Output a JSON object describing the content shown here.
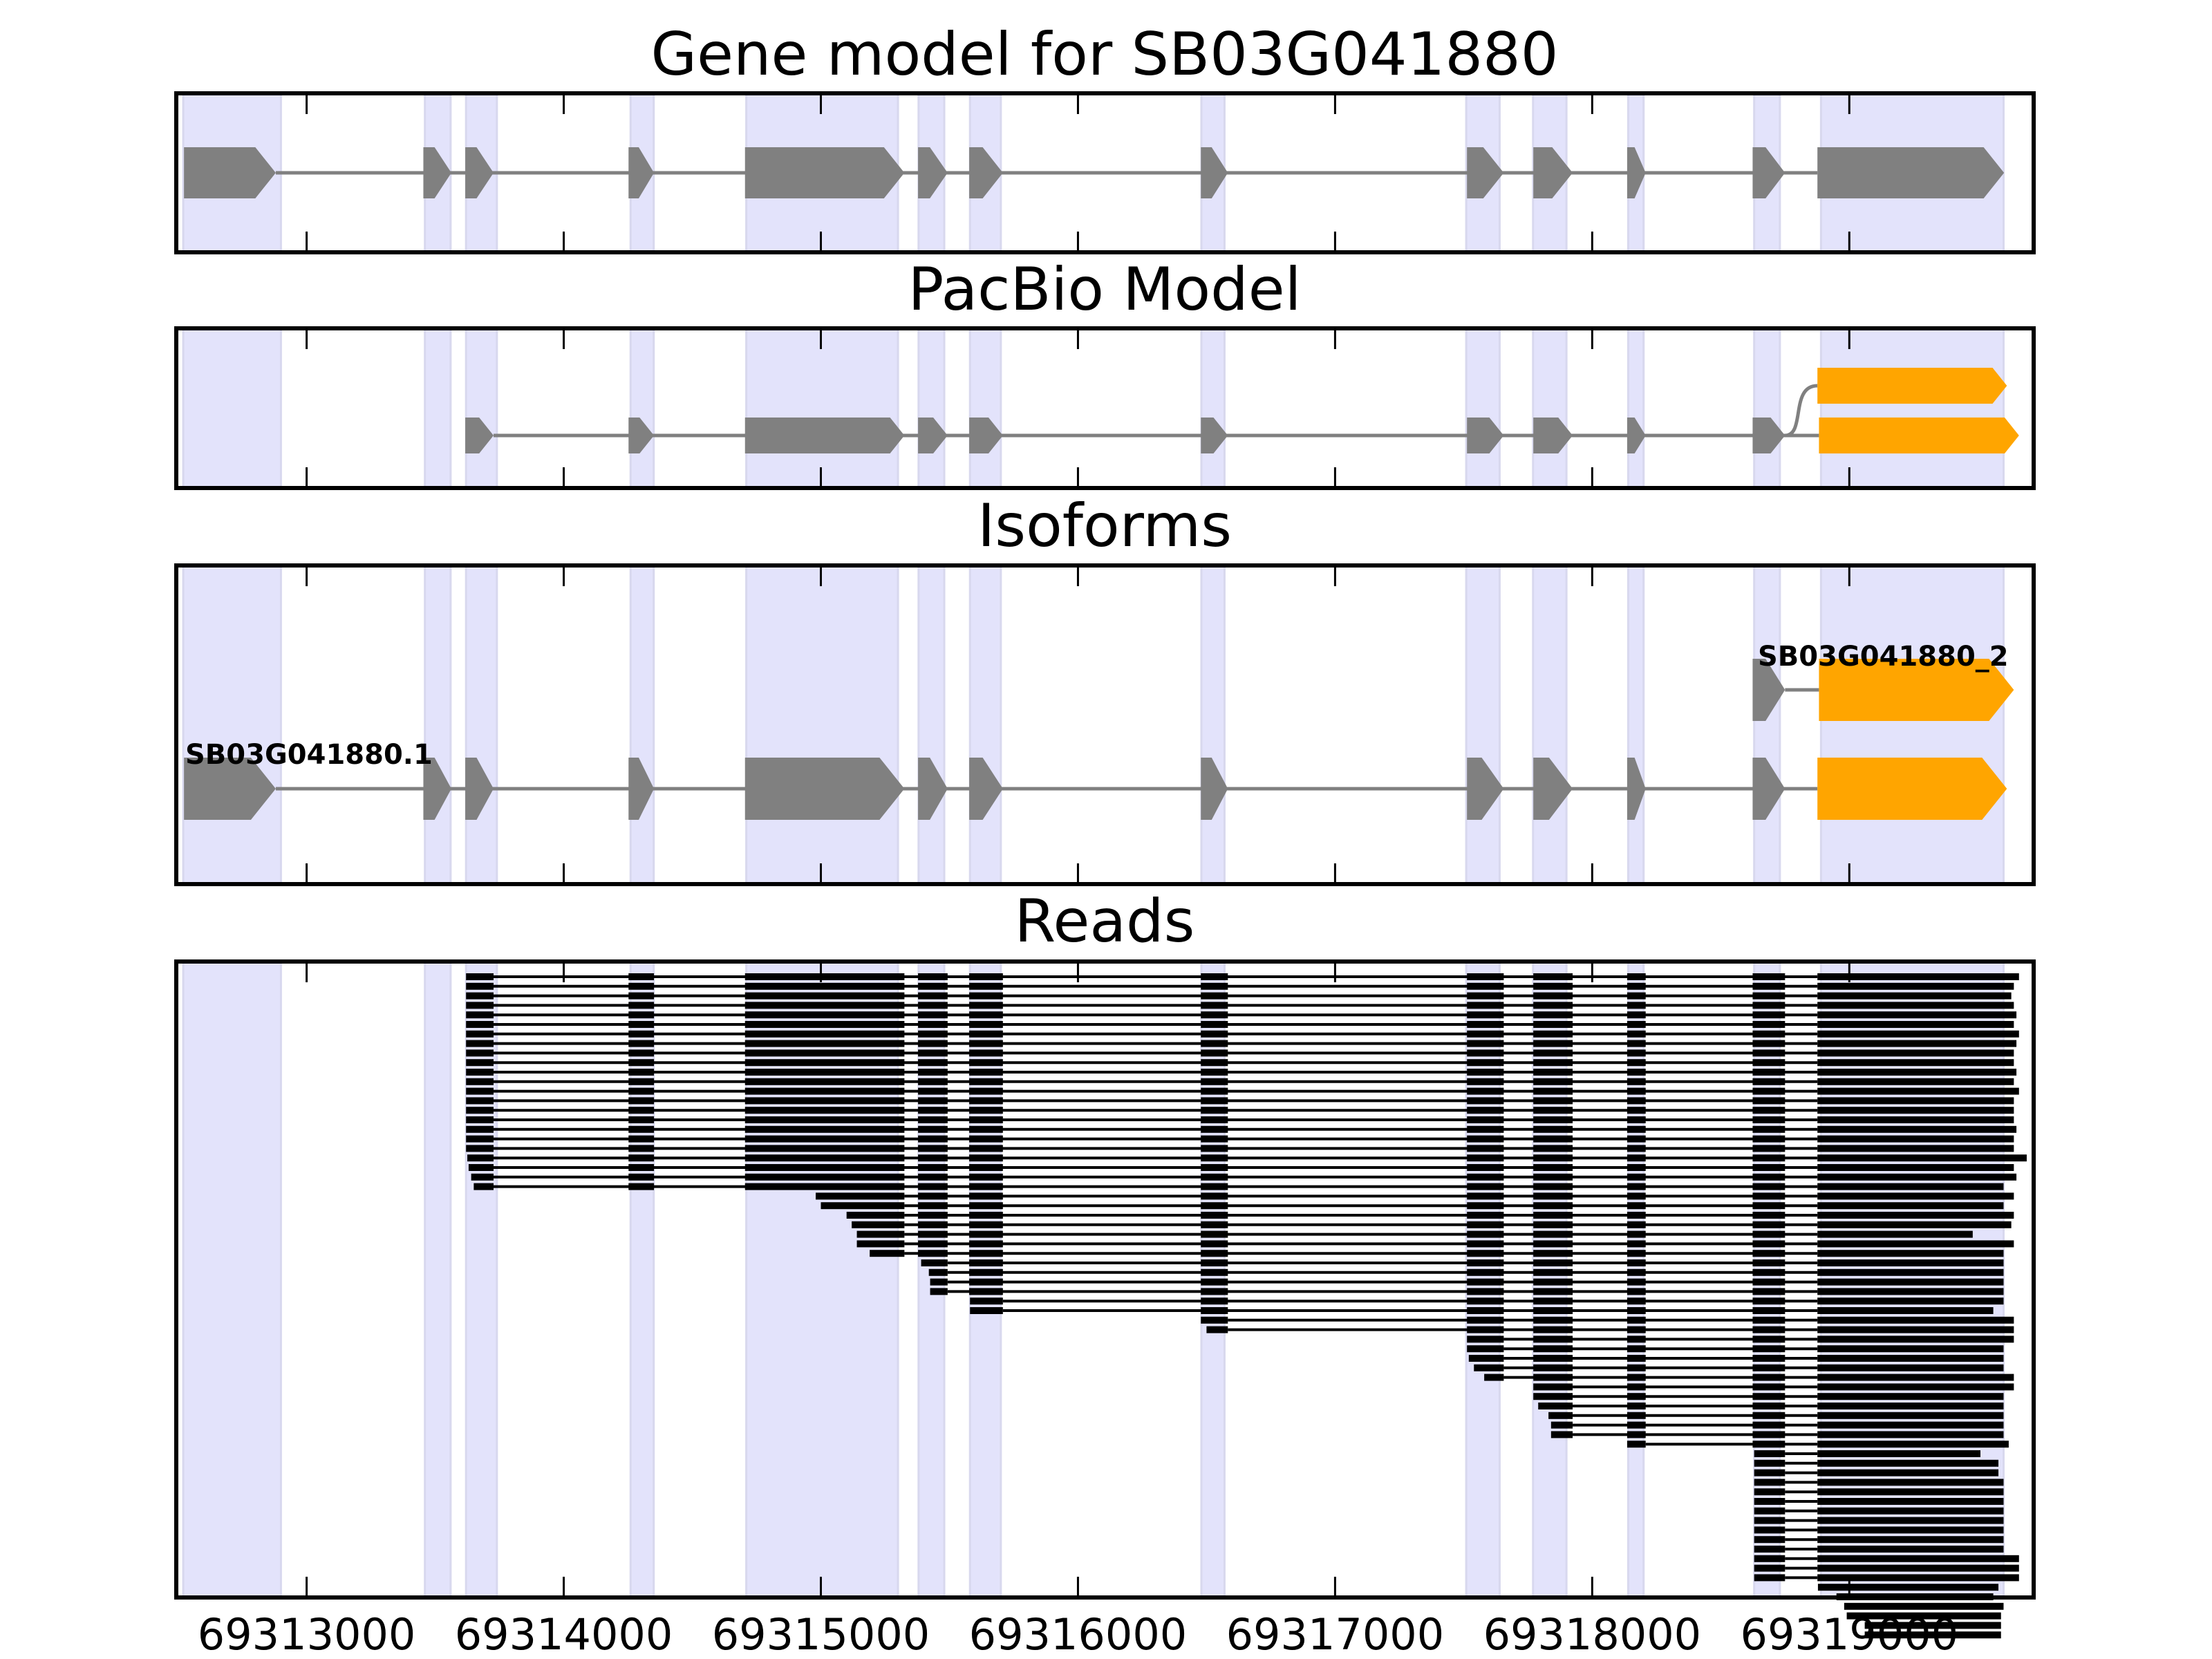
{
  "chart_data": {
    "type": "gene-track",
    "title": "Gene model for SB03G041880",
    "panels": [
      {
        "id": "gene",
        "title": "Gene model for SB03G041880"
      },
      {
        "id": "pacbio",
        "title": "PacBio Model"
      },
      {
        "id": "isoforms",
        "title": "Isoforms"
      },
      {
        "id": "reads",
        "title": "Reads"
      }
    ],
    "xlim": [
      69312493,
      69319717
    ],
    "xticks": [
      69313000,
      69314000,
      69315000,
      69316000,
      69317000,
      69318000,
      69319000
    ],
    "xtick_labels": [
      "69313000",
      "69314000",
      "69315000",
      "69316000",
      "69317000",
      "69318000",
      "69319000"
    ],
    "strand": "+",
    "colors": {
      "exon": "#808080",
      "intron": "#808080",
      "alt_exon": "#FFA500",
      "band": "#E3E3FB",
      "read": "#000000",
      "frame": "#000000"
    },
    "exon_bands": [
      [
        69312520,
        69312900
      ],
      [
        69313460,
        69313560
      ],
      [
        69313620,
        69313740
      ],
      [
        69314260,
        69314350
      ],
      [
        69314710,
        69315300
      ],
      [
        69315380,
        69315480
      ],
      [
        69315580,
        69315700
      ],
      [
        69316480,
        69316570
      ],
      [
        69317510,
        69317640
      ],
      [
        69317770,
        69317900
      ],
      [
        69318140,
        69318200
      ],
      [
        69318630,
        69318730
      ],
      [
        69318890,
        69319600
      ]
    ],
    "gene_model": {
      "exons": [
        [
          69312523,
          69312880
        ],
        [
          69313454,
          69313563
        ],
        [
          69313617,
          69313727
        ],
        [
          69314252,
          69314351
        ],
        [
          69314705,
          69315325
        ],
        [
          69315378,
          69315493
        ],
        [
          69315577,
          69315708
        ],
        [
          69316478,
          69316583
        ],
        [
          69317513,
          69317656
        ],
        [
          69317771,
          69317924
        ],
        [
          69318136,
          69318208
        ],
        [
          69318624,
          69318750
        ],
        [
          69318876,
          69319602
        ]
      ]
    },
    "pacbio_model": {
      "main": {
        "exons": [
          [
            69313617,
            69313727
          ],
          [
            69314252,
            69314351
          ],
          [
            69314705,
            69315325
          ],
          [
            69315378,
            69315493
          ],
          [
            69315577,
            69315708
          ],
          [
            69316478,
            69316583
          ],
          [
            69317513,
            69317656
          ],
          [
            69317771,
            69317924
          ],
          [
            69318136,
            69318208
          ],
          [
            69318624,
            69318750
          ]
        ],
        "alt_exons": [
          [
            69318882,
            69319660
          ]
        ]
      },
      "branch": {
        "from": 69318750,
        "alt_exons": [
          [
            69318876,
            69319613
          ]
        ]
      }
    },
    "isoforms": [
      {
        "name": "SB03G041880.1",
        "exons": [
          [
            69312523,
            69312880
          ],
          [
            69313454,
            69313563
          ],
          [
            69313617,
            69313727
          ],
          [
            69314252,
            69314351
          ],
          [
            69314705,
            69315325
          ],
          [
            69315378,
            69315493
          ],
          [
            69315577,
            69315708
          ],
          [
            69316478,
            69316583
          ],
          [
            69317513,
            69317656
          ],
          [
            69317771,
            69317924
          ],
          [
            69318136,
            69318208
          ],
          [
            69318624,
            69318750
          ]
        ],
        "alt_exons": [
          [
            69318876,
            69319613
          ]
        ]
      },
      {
        "name": "SB03G041880_2",
        "exons": [
          [
            69318624,
            69318750
          ]
        ],
        "alt_exons": [
          [
            69318882,
            69319640
          ]
        ]
      }
    ],
    "reads": [
      [
        2,
        69313620,
        69319660
      ],
      [
        2,
        69313620,
        69319640
      ],
      [
        2,
        69313620,
        69319630
      ],
      [
        2,
        69313620,
        69319640
      ],
      [
        2,
        69313620,
        69319650
      ],
      [
        2,
        69313620,
        69319640
      ],
      [
        2,
        69313620,
        69319660
      ],
      [
        2,
        69313620,
        69319650
      ],
      [
        2,
        69313620,
        69319640
      ],
      [
        2,
        69313620,
        69319640
      ],
      [
        2,
        69313620,
        69319650
      ],
      [
        2,
        69313620,
        69319640
      ],
      [
        2,
        69313620,
        69319660
      ],
      [
        2,
        69313620,
        69319640
      ],
      [
        2,
        69313620,
        69319640
      ],
      [
        2,
        69313620,
        69319640
      ],
      [
        2,
        69313620,
        69319650
      ],
      [
        2,
        69313620,
        69319640
      ],
      [
        2,
        69313620,
        69319640
      ],
      [
        2,
        69313625,
        69319690
      ],
      [
        2,
        69313630,
        69319640
      ],
      [
        2,
        69313640,
        69319650
      ],
      [
        2,
        69313650,
        69319600
      ],
      [
        4,
        69314980,
        69319640
      ],
      [
        4,
        69315000,
        69319600
      ],
      [
        4,
        69315100,
        69319640
      ],
      [
        4,
        69315120,
        69319630
      ],
      [
        4,
        69315140,
        69319480
      ],
      [
        4,
        69315140,
        69319640
      ],
      [
        4,
        69315190,
        69319600
      ],
      [
        5,
        69315390,
        69319600
      ],
      [
        5,
        69315420,
        69319600
      ],
      [
        5,
        69315425,
        69319600
      ],
      [
        5,
        69315425,
        69319600
      ],
      [
        6,
        69315580,
        69319600
      ],
      [
        6,
        69315580,
        69319560
      ],
      [
        7,
        69316478,
        69319640
      ],
      [
        7,
        69316500,
        69319640
      ],
      [
        8,
        69317513,
        69319640
      ],
      [
        8,
        69317513,
        69319600
      ],
      [
        8,
        69317520,
        69319600
      ],
      [
        8,
        69317540,
        69319600
      ],
      [
        8,
        69317580,
        69319640
      ],
      [
        9,
        69317771,
        69319640
      ],
      [
        9,
        69317771,
        69319600
      ],
      [
        9,
        69317790,
        69319600
      ],
      [
        9,
        69317830,
        69319600
      ],
      [
        9,
        69317840,
        69319600
      ],
      [
        9,
        69317840,
        69319600
      ],
      [
        10,
        69318136,
        69319620
      ],
      [
        11,
        69318630,
        69319510
      ],
      [
        11,
        69318630,
        69319580
      ],
      [
        11,
        69318630,
        69319580
      ],
      [
        11,
        69318630,
        69319600
      ],
      [
        11,
        69318630,
        69319600
      ],
      [
        11,
        69318630,
        69319600
      ],
      [
        11,
        69318630,
        69319600
      ],
      [
        11,
        69318630,
        69319600
      ],
      [
        11,
        69318630,
        69319600
      ],
      [
        11,
        69318630,
        69319600
      ],
      [
        11,
        69318630,
        69319600
      ],
      [
        11,
        69318630,
        69319660
      ],
      [
        11,
        69318630,
        69319660
      ],
      [
        11,
        69318630,
        69319660
      ],
      [
        12,
        69318878,
        69319580
      ],
      [
        12,
        69318950,
        69319560
      ],
      [
        12,
        69318980,
        69319600
      ],
      [
        12,
        69318990,
        69319590
      ],
      [
        12,
        69319060,
        69319590
      ],
      [
        12,
        69319060,
        69319590
      ]
    ]
  }
}
